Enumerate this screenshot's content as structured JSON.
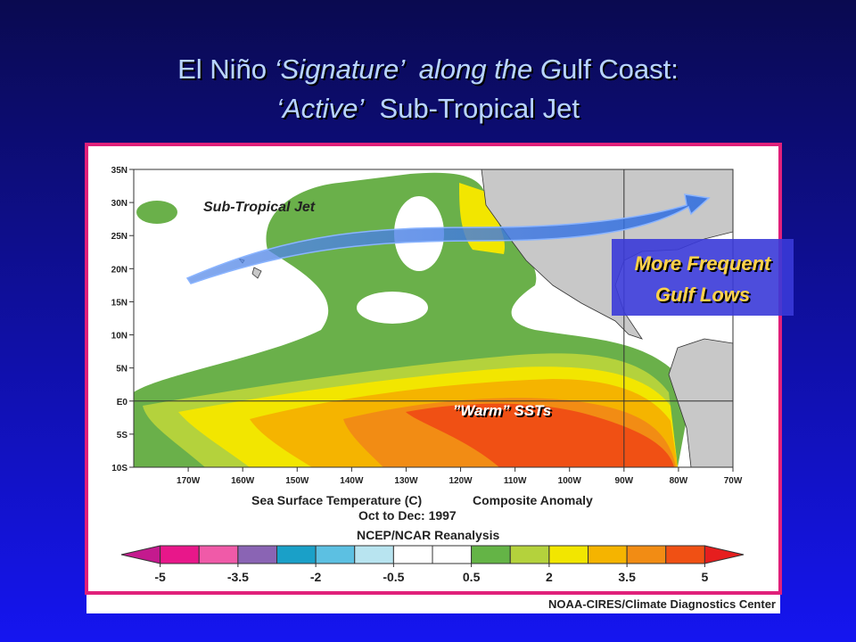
{
  "title": {
    "line1": [
      {
        "text": "El Niño ",
        "italic": false
      },
      {
        "text": "‘Signature’",
        "italic": true
      },
      {
        "text": "  along the G",
        "italic": true
      },
      {
        "text": "ulf Coast:",
        "italic": false
      }
    ],
    "line2": [
      {
        "text": "‘Active’",
        "italic": true
      },
      {
        "text": "  Sub-Tropical Jet",
        "italic": false
      }
    ]
  },
  "map": {
    "xlim": [
      -180,
      -70
    ],
    "ylim": [
      -10,
      35
    ],
    "yticks": [
      {
        "value": 35,
        "label": "35N"
      },
      {
        "value": 30,
        "label": "30N"
      },
      {
        "value": 25,
        "label": "25N"
      },
      {
        "value": 20,
        "label": "20N"
      },
      {
        "value": 15,
        "label": "15N"
      },
      {
        "value": 10,
        "label": "10N"
      },
      {
        "value": 5,
        "label": "5N"
      },
      {
        "value": 0,
        "label": "E0"
      },
      {
        "value": -5,
        "label": "5S"
      },
      {
        "value": -10,
        "label": "10S"
      }
    ],
    "xticks": [
      {
        "value": -170,
        "label": "170W"
      },
      {
        "value": -160,
        "label": "160W"
      },
      {
        "value": -150,
        "label": "150W"
      },
      {
        "value": -140,
        "label": "140W"
      },
      {
        "value": -130,
        "label": "130W"
      },
      {
        "value": -120,
        "label": "120W"
      },
      {
        "value": -110,
        "label": "110W"
      },
      {
        "value": -100,
        "label": "100W"
      },
      {
        "value": -90,
        "label": "90W"
      },
      {
        "value": -80,
        "label": "80W"
      },
      {
        "value": -70,
        "label": "70W"
      }
    ],
    "jet_label": "Sub-Tropical Jet",
    "warm_label": "”Warm”  SSTs",
    "gulf_label": [
      "More Frequent",
      "Gulf Lows"
    ]
  },
  "caption": {
    "line1a": "Sea Surface Temperature (C)",
    "line1b": "Composite Anomaly",
    "line2": "Oct to Dec:  1997",
    "line3": "NCEP/NCAR Reanalysis"
  },
  "colorbar": {
    "ticks": [
      -5,
      -3.5,
      -2,
      -0.5,
      0.5,
      2,
      3.5,
      5
    ],
    "colors": [
      "#c41a8e",
      "#e8178a",
      "#f05aa8",
      "#8a64b4",
      "#1aa0c8",
      "#5cc0e2",
      "#b8e4f0",
      "#ffffff",
      "#ffffff",
      "#64b446",
      "#b4d23c",
      "#f2e600",
      "#f5b400",
      "#f28c14",
      "#f05014",
      "#e61e1e"
    ]
  },
  "credit": "NOAA-CIRES/Climate Diagnostics Center"
}
